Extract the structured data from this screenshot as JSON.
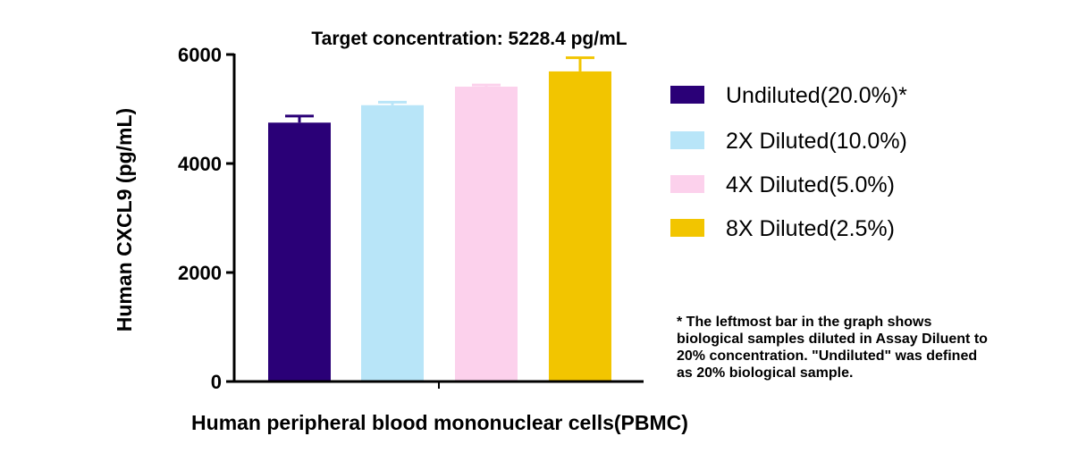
{
  "chart_data": {
    "type": "bar",
    "title": "Target concentration: 5228.4 pg/mL",
    "xlabel": "Human peripheral blood mononuclear cells(PBMC)",
    "ylabel": "Human CXCL9 (pg/mL)",
    "ylim": [
      0,
      6000
    ],
    "yticks": [
      "0",
      "2000",
      "4000",
      "6000"
    ],
    "legend_position": "right",
    "grid": false,
    "series": [
      {
        "name": "Undiluted(20.0%)*",
        "value": 4750,
        "error": 120,
        "color": "#2a0077"
      },
      {
        "name": "2X Diluted(10.0%)",
        "value": 5070,
        "error": 55,
        "color": "#b8e5f8"
      },
      {
        "name": "4X Diluted(5.0%)",
        "value": 5410,
        "error": 30,
        "color": "#fcd1ec"
      },
      {
        "name": "8X Diluted(2.5%)",
        "value": 5690,
        "error": 250,
        "color": "#f2c500"
      }
    ],
    "note": [
      "* The leftmost bar in the graph shows",
      "biological samples diluted in Assay Diluent to",
      "20% concentration. \"Undiluted\" was defined",
      "as 20% biological sample."
    ]
  }
}
